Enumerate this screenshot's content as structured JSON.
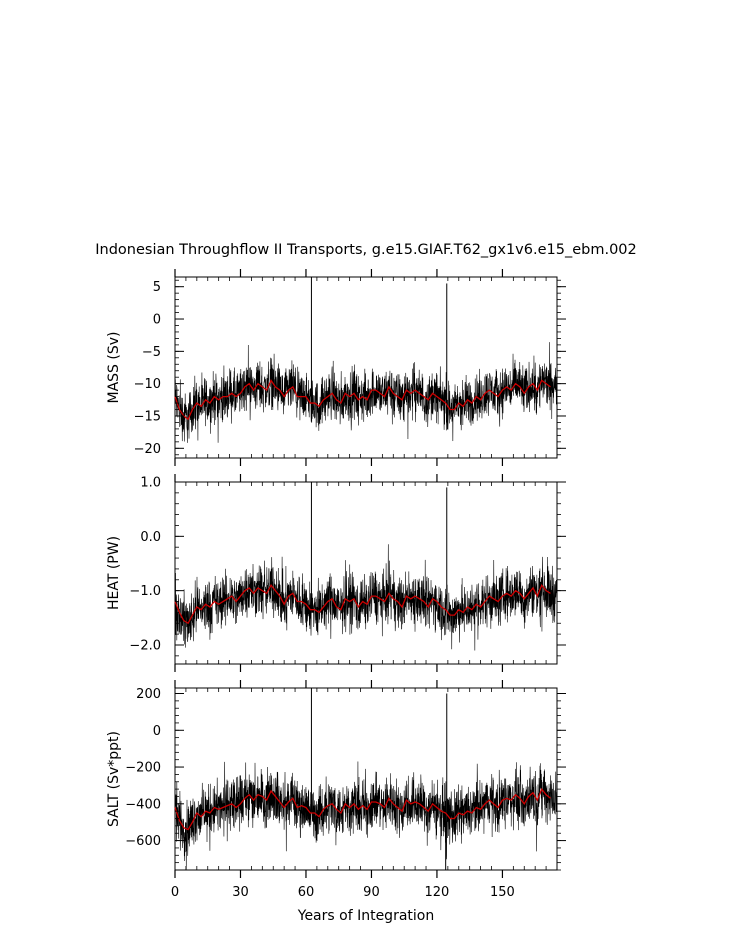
{
  "chart_data": {
    "type": "line",
    "title": "Indonesian Throughflow II Transports, g.e15.GIAF.T62_gx1v6.e15_ebm.002",
    "xlabel": "Years of Integration",
    "xlim": [
      0,
      175
    ],
    "xticks": [
      0,
      30,
      60,
      90,
      120,
      150
    ],
    "xtick_labels": [
      "0",
      "30",
      "60",
      "90",
      "120",
      "150"
    ],
    "grid": false,
    "legend": "none",
    "colors": {
      "monthly": "#000000",
      "annual_mean": "#cc0000"
    },
    "panels": [
      {
        "ylabel": "MASS (Sv)",
        "ylim": [
          -21.5,
          6.5
        ],
        "yticks": [
          5,
          0,
          -5,
          -10,
          -15,
          -20
        ],
        "ytick_labels": [
          "5",
          "0",
          "−5",
          "−10",
          "−15",
          "−20"
        ],
        "series": [
          {
            "line": "monthly",
            "x_start": 0,
            "x_step": 0.0833,
            "mean": -12.0,
            "amplitude": 5.5,
            "spikes": [
              {
                "x": 62.5,
                "y": 6.5
              },
              {
                "x": 124.5,
                "y": 5.5
              }
            ]
          },
          {
            "line": "annual_mean",
            "x": [
              0,
              2,
              4,
              6,
              8,
              10,
              12,
              14,
              16,
              18,
              20,
              22,
              24,
              26,
              28,
              30,
              32,
              34,
              36,
              38,
              40,
              42,
              44,
              46,
              48,
              50,
              52,
              54,
              56,
              58,
              60,
              62,
              64,
              66,
              68,
              70,
              72,
              74,
              76,
              78,
              80,
              82,
              84,
              86,
              88,
              90,
              92,
              94,
              96,
              98,
              100,
              102,
              104,
              106,
              108,
              110,
              112,
              114,
              116,
              118,
              120,
              122,
              124,
              126,
              128,
              130,
              132,
              134,
              136,
              138,
              140,
              142,
              144,
              146,
              148,
              150,
              152,
              154,
              156,
              158,
              160,
              162,
              164,
              166,
              168,
              170,
              172
            ],
            "y": [
              -12,
              -14,
              -15,
              -15.5,
              -14,
              -13,
              -13.5,
              -12.5,
              -13,
              -12,
              -12.5,
              -12,
              -12,
              -11.5,
              -12,
              -11.5,
              -10.5,
              -10,
              -11,
              -10,
              -10.5,
              -11,
              -9.5,
              -10.5,
              -11,
              -12,
              -11,
              -10.5,
              -12,
              -12,
              -12,
              -13,
              -13,
              -13.5,
              -12.5,
              -12,
              -11.5,
              -12.5,
              -13,
              -11.5,
              -12,
              -11.5,
              -12.5,
              -12,
              -12.5,
              -11,
              -11,
              -11.5,
              -12,
              -10.5,
              -11.5,
              -12,
              -12.5,
              -11,
              -11.5,
              -11,
              -11.5,
              -12,
              -12.5,
              -11.5,
              -12,
              -12.5,
              -13,
              -14,
              -14,
              -13,
              -13.5,
              -12.5,
              -13,
              -12,
              -12.5,
              -11.5,
              -11,
              -11.5,
              -12,
              -11,
              -10.5,
              -11,
              -10,
              -10.5,
              -11.5,
              -10.5,
              -10,
              -11,
              -9.5,
              -10,
              -10.5
            ]
          }
        ]
      },
      {
        "ylabel": "HEAT (PW)",
        "ylim": [
          -2.35,
          1.0
        ],
        "yticks": [
          1.0,
          0.0,
          -1.0,
          -2.0
        ],
        "ytick_labels": [
          "1.0",
          "0.0",
          "−1.0",
          "−2.0"
        ],
        "series": [
          {
            "line": "monthly",
            "x_start": 0,
            "x_step": 0.0833,
            "mean": -1.2,
            "amplitude": 0.7,
            "spikes": [
              {
                "x": 62.5,
                "y": 1.0
              },
              {
                "x": 124.5,
                "y": 0.9
              }
            ]
          },
          {
            "line": "annual_mean",
            "x": [
              0,
              2,
              4,
              6,
              8,
              10,
              12,
              14,
              16,
              18,
              20,
              22,
              24,
              26,
              28,
              30,
              32,
              34,
              36,
              38,
              40,
              42,
              44,
              46,
              48,
              50,
              52,
              54,
              56,
              58,
              60,
              62,
              64,
              66,
              68,
              70,
              72,
              74,
              76,
              78,
              80,
              82,
              84,
              86,
              88,
              90,
              92,
              94,
              96,
              98,
              100,
              102,
              104,
              106,
              108,
              110,
              112,
              114,
              116,
              118,
              120,
              122,
              124,
              126,
              128,
              130,
              132,
              134,
              136,
              138,
              140,
              142,
              144,
              146,
              148,
              150,
              152,
              154,
              156,
              158,
              160,
              162,
              164,
              166,
              168,
              170,
              172
            ],
            "y": [
              -1.2,
              -1.4,
              -1.55,
              -1.6,
              -1.45,
              -1.3,
              -1.35,
              -1.25,
              -1.3,
              -1.2,
              -1.25,
              -1.2,
              -1.15,
              -1.1,
              -1.2,
              -1.1,
              -1.0,
              -0.95,
              -1.05,
              -0.95,
              -1.0,
              -1.05,
              -0.9,
              -1.0,
              -1.1,
              -1.25,
              -1.1,
              -1.05,
              -1.2,
              -1.2,
              -1.25,
              -1.35,
              -1.35,
              -1.4,
              -1.3,
              -1.2,
              -1.15,
              -1.3,
              -1.35,
              -1.15,
              -1.2,
              -1.15,
              -1.3,
              -1.2,
              -1.25,
              -1.1,
              -1.1,
              -1.15,
              -1.2,
              -1.05,
              -1.15,
              -1.2,
              -1.3,
              -1.1,
              -1.15,
              -1.1,
              -1.15,
              -1.2,
              -1.3,
              -1.15,
              -1.2,
              -1.3,
              -1.35,
              -1.45,
              -1.45,
              -1.35,
              -1.4,
              -1.3,
              -1.35,
              -1.25,
              -1.3,
              -1.2,
              -1.1,
              -1.15,
              -1.2,
              -1.1,
              -1.05,
              -1.1,
              -1.0,
              -1.05,
              -1.15,
              -1.05,
              -0.95,
              -1.1,
              -0.9,
              -1.0,
              -1.05
            ]
          }
        ]
      },
      {
        "ylabel": "SALT (Sv*ppt)",
        "ylim": [
          -760,
          230
        ],
        "yticks": [
          200,
          0,
          -200,
          -400,
          -600
        ],
        "ytick_labels": [
          "200",
          "0",
          "−200",
          "−400",
          "−600"
        ],
        "series": [
          {
            "line": "monthly",
            "x_start": 0,
            "x_step": 0.0833,
            "mean": -420,
            "amplitude": 210,
            "spikes": [
              {
                "x": 62.5,
                "y": 230
              },
              {
                "x": 124.5,
                "y": 200
              },
              {
                "x": 124.0,
                "y": -760
              }
            ]
          },
          {
            "line": "annual_mean",
            "x": [
              0,
              2,
              4,
              6,
              8,
              10,
              12,
              14,
              16,
              18,
              20,
              22,
              24,
              26,
              28,
              30,
              32,
              34,
              36,
              38,
              40,
              42,
              44,
              46,
              48,
              50,
              52,
              54,
              56,
              58,
              60,
              62,
              64,
              66,
              68,
              70,
              72,
              74,
              76,
              78,
              80,
              82,
              84,
              86,
              88,
              90,
              92,
              94,
              96,
              98,
              100,
              102,
              104,
              106,
              108,
              110,
              112,
              114,
              116,
              118,
              120,
              122,
              124,
              126,
              128,
              130,
              132,
              134,
              136,
              138,
              140,
              142,
              144,
              146,
              148,
              150,
              152,
              154,
              156,
              158,
              160,
              162,
              164,
              166,
              168,
              170,
              172
            ],
            "y": [
              -420,
              -490,
              -530,
              -540,
              -500,
              -450,
              -470,
              -440,
              -450,
              -420,
              -430,
              -420,
              -410,
              -400,
              -420,
              -400,
              -370,
              -350,
              -380,
              -350,
              -360,
              -380,
              -330,
              -360,
              -390,
              -420,
              -390,
              -370,
              -420,
              -410,
              -420,
              -450,
              -450,
              -470,
              -430,
              -410,
              -400,
              -430,
              -450,
              -400,
              -420,
              -400,
              -430,
              -410,
              -430,
              -390,
              -390,
              -400,
              -420,
              -370,
              -400,
              -420,
              -440,
              -380,
              -400,
              -390,
              -400,
              -420,
              -440,
              -400,
              -420,
              -440,
              -450,
              -480,
              -480,
              -450,
              -460,
              -440,
              -450,
              -420,
              -430,
              -400,
              -380,
              -400,
              -420,
              -380,
              -370,
              -380,
              -350,
              -370,
              -400,
              -360,
              -340,
              -380,
              -320,
              -350,
              -370
            ]
          }
        ]
      }
    ]
  }
}
